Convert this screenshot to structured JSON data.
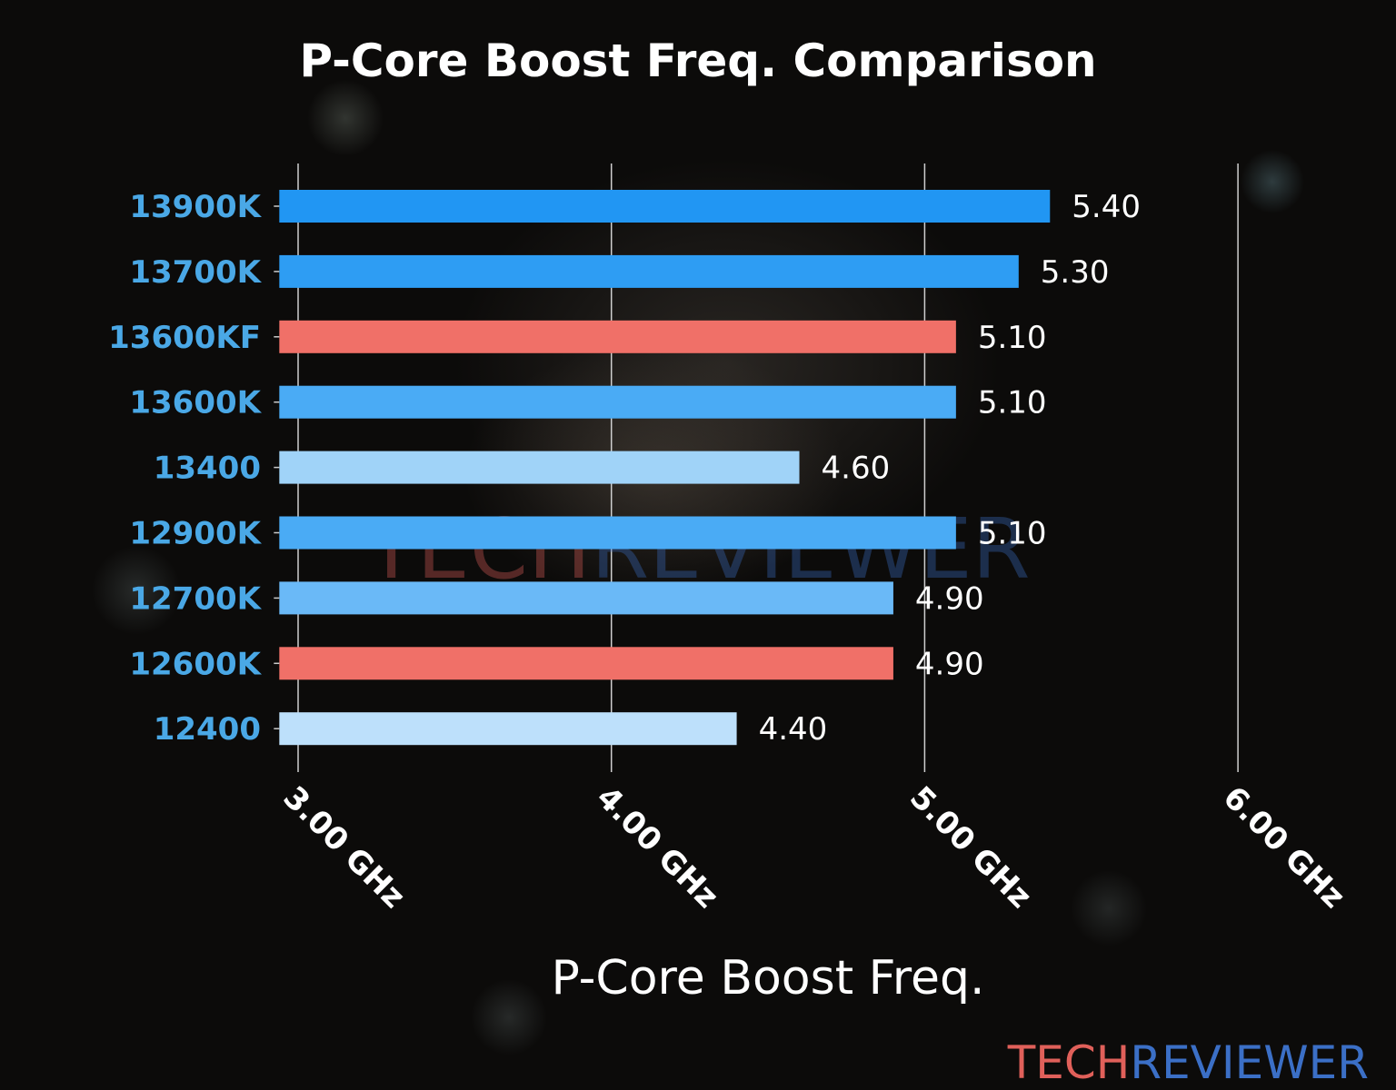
{
  "chart_data": {
    "type": "bar",
    "orientation": "horizontal",
    "title": "P-Core Boost Freq. Comparison",
    "xlabel": "P-Core Boost Freq.",
    "ylabel": "",
    "categories": [
      "13900K",
      "13700K",
      "13600KF",
      "13600K",
      "13400",
      "12900K",
      "12700K",
      "12600K",
      "12400"
    ],
    "values": [
      5.4,
      5.3,
      5.1,
      5.1,
      4.6,
      5.1,
      4.9,
      4.9,
      4.4
    ],
    "value_labels": [
      "5.40",
      "5.30",
      "5.10",
      "5.10",
      "4.60",
      "5.10",
      "4.90",
      "4.90",
      "4.40"
    ],
    "colors": [
      "#2196f3",
      "#2e9df3",
      "#f07068",
      "#4aabf5",
      "#a0d3f8",
      "#4aabf5",
      "#6ab9f7",
      "#f07068",
      "#bde0fb"
    ],
    "xticks": [
      3,
      4,
      5,
      6
    ],
    "xtick_labels": [
      "3.00 GHz",
      "4.00 GHz",
      "5.00 GHz",
      "6.00 GHz"
    ],
    "xlim": [
      2.94,
      6.0
    ],
    "grid": "vertical",
    "legend": "none"
  },
  "watermark": {
    "part1": "TECH",
    "part2": "REVIEWER",
    "color1": "#e0605a",
    "color2": "#3b6fc6"
  }
}
